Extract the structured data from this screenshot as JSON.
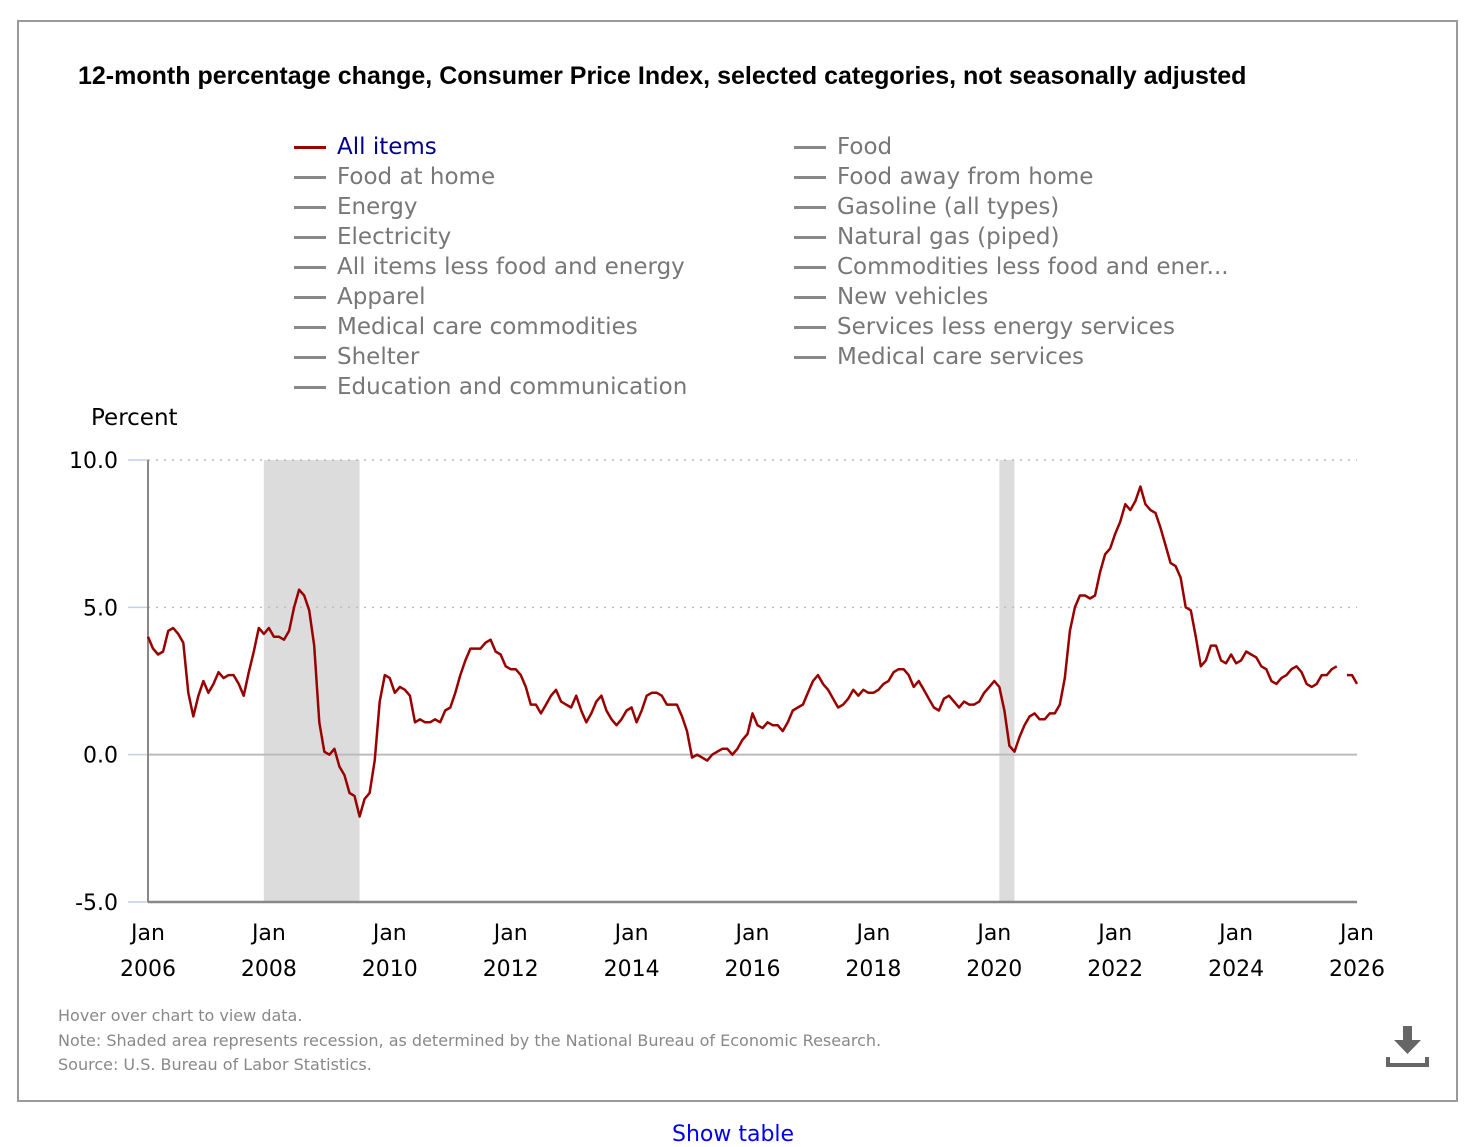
{
  "chart_data": {
    "type": "line",
    "title": "12-month percentage change, Consumer Price Index, selected categories, not seasonally adjusted",
    "ylabel": "Percent",
    "xlabel": "",
    "ylim": [
      -5.0,
      10.0
    ],
    "yticks": [
      "10.0",
      "5.0",
      "0.0",
      "-5.0"
    ],
    "ytick_values": [
      10,
      5,
      0,
      -5
    ],
    "xlim": [
      "2006-01",
      "2026-01"
    ],
    "xticks": [
      {
        "month": "Jan",
        "year": "2006"
      },
      {
        "month": "Jan",
        "year": "2008"
      },
      {
        "month": "Jan",
        "year": "2010"
      },
      {
        "month": "Jan",
        "year": "2012"
      },
      {
        "month": "Jan",
        "year": "2014"
      },
      {
        "month": "Jan",
        "year": "2016"
      },
      {
        "month": "Jan",
        "year": "2018"
      },
      {
        "month": "Jan",
        "year": "2020"
      },
      {
        "month": "Jan",
        "year": "2022"
      },
      {
        "month": "Jan",
        "year": "2024"
      },
      {
        "month": "Jan",
        "year": "2026"
      }
    ],
    "grid": "horizontal-dotted",
    "recessions": [
      {
        "start": "2007-12",
        "end": "2009-06"
      },
      {
        "start": "2020-02",
        "end": "2020-04"
      }
    ],
    "legend": {
      "placement": "top",
      "left_column": [
        "All items",
        "Food at home",
        "Energy",
        "Electricity",
        "All items less food and energy",
        "Apparel",
        "Medical care commodities",
        "Shelter",
        "Education and communication"
      ],
      "right_column": [
        "Food",
        "Food away from home",
        "Gasoline (all types)",
        "Natural gas (piped)",
        "Commodities less food and ener...",
        "New vehicles",
        "Services less energy services",
        "Medical care services"
      ]
    },
    "series": [
      {
        "name": "All items",
        "color": "#990000",
        "start": "2006-01",
        "values": [
          4.0,
          3.6,
          3.4,
          3.5,
          4.2,
          4.3,
          4.1,
          3.8,
          2.1,
          1.3,
          2.0,
          2.5,
          2.1,
          2.4,
          2.8,
          2.6,
          2.7,
          2.7,
          2.4,
          2.0,
          2.8,
          3.5,
          4.3,
          4.1,
          4.3,
          4.0,
          4.0,
          3.9,
          4.2,
          5.0,
          5.6,
          5.4,
          4.9,
          3.7,
          1.1,
          0.1,
          0.0,
          0.2,
          -0.4,
          -0.7,
          -1.3,
          -1.4,
          -2.1,
          -1.5,
          -1.3,
          -0.2,
          1.8,
          2.7,
          2.6,
          2.1,
          2.3,
          2.2,
          2.0,
          1.1,
          1.2,
          1.1,
          1.1,
          1.2,
          1.1,
          1.5,
          1.6,
          2.1,
          2.7,
          3.2,
          3.6,
          3.6,
          3.6,
          3.8,
          3.9,
          3.5,
          3.4,
          3.0,
          2.9,
          2.9,
          2.7,
          2.3,
          1.7,
          1.7,
          1.4,
          1.7,
          2.0,
          2.2,
          1.8,
          1.7,
          1.6,
          2.0,
          1.5,
          1.1,
          1.4,
          1.8,
          2.0,
          1.5,
          1.2,
          1.0,
          1.2,
          1.5,
          1.6,
          1.1,
          1.5,
          2.0,
          2.1,
          2.1,
          2.0,
          1.7,
          1.7,
          1.7,
          1.3,
          0.8,
          -0.1,
          0.0,
          -0.1,
          -0.2,
          0.0,
          0.1,
          0.2,
          0.2,
          0.0,
          0.2,
          0.5,
          0.7,
          1.4,
          1.0,
          0.9,
          1.1,
          1.0,
          1.0,
          0.8,
          1.1,
          1.5,
          1.6,
          1.7,
          2.1,
          2.5,
          2.7,
          2.4,
          2.2,
          1.9,
          1.6,
          1.7,
          1.9,
          2.2,
          2.0,
          2.2,
          2.1,
          2.1,
          2.2,
          2.4,
          2.5,
          2.8,
          2.9,
          2.9,
          2.7,
          2.3,
          2.5,
          2.2,
          1.9,
          1.6,
          1.5,
          1.9,
          2.0,
          1.8,
          1.6,
          1.8,
          1.7,
          1.7,
          1.8,
          2.1,
          2.3,
          2.5,
          2.3,
          1.5,
          0.3,
          0.1,
          0.6,
          1.0,
          1.3,
          1.4,
          1.2,
          1.2,
          1.4,
          1.4,
          1.7,
          2.6,
          4.2,
          5.0,
          5.4,
          5.4,
          5.3,
          5.4,
          6.2,
          6.8,
          7.0,
          7.5,
          7.9,
          8.5,
          8.3,
          8.6,
          9.1,
          8.5,
          8.3,
          8.2,
          7.7,
          7.1,
          6.5,
          6.4,
          6.0,
          5.0,
          4.9,
          4.0,
          3.0,
          3.2,
          3.7,
          3.7,
          3.2,
          3.1,
          3.4,
          3.1,
          3.2,
          3.5,
          3.4,
          3.3,
          3.0,
          2.9,
          2.5,
          2.4,
          2.6,
          2.7,
          2.9,
          3.0,
          2.8,
          2.4,
          2.3,
          2.4,
          2.7,
          2.7,
          2.9,
          3.0,
          null,
          2.7,
          2.7,
          2.4
        ]
      }
    ]
  },
  "notes": {
    "hover": "Hover over chart to view data.",
    "note": "Note: Shaded area represents recession, as determined by the National Bureau of Economic Research.",
    "source": "Source: U.S. Bureau of Labor Statistics."
  },
  "download_icon": "download-icon",
  "show_table_label": "Show table"
}
